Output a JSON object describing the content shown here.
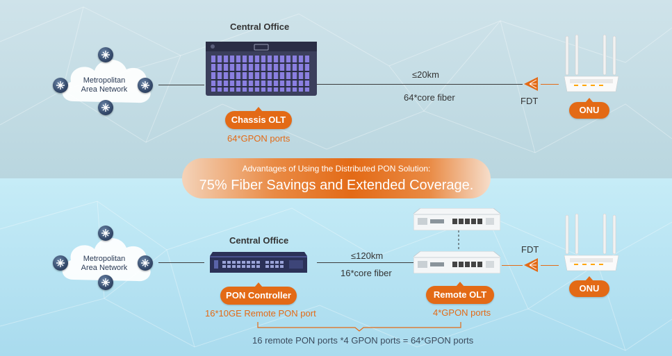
{
  "top": {
    "central_office_title": "Central Office",
    "network_label": "Metropolitan Area Network",
    "device_label": "Chassis OLT",
    "device_ports": "64*GPON ports",
    "distance": "≤20km",
    "fiber": "64*core fiber",
    "fdt_label": "FDT",
    "onu_label": "ONU"
  },
  "banner": {
    "line1": "Advantages of Using the Distributed PON Solution:",
    "line2": "75% Fiber Savings and Extended Coverage."
  },
  "bottom": {
    "central_office_title": "Central Office",
    "network_label": "Metropolitan Area Network",
    "controller_label": "PON Controller",
    "controller_ports": "16*10GE Remote PON port",
    "distance": "≤120km",
    "fiber": "16*core fiber",
    "remote_olt_label": "Remote OLT",
    "remote_olt_ports": "4*GPON ports",
    "fdt_label": "FDT",
    "onu_label": "ONU",
    "summary": "16 remote PON ports *4 GPON ports = 64*GPON ports"
  },
  "colors": {
    "accent": "#e36a16",
    "chassis": "#3b3f5c",
    "chassis_port": "#8a7fe0",
    "controller": "#2b3158"
  },
  "icons": [
    "router-icon",
    "cloud-icon",
    "splitter-icon",
    "onu-router-icon"
  ]
}
